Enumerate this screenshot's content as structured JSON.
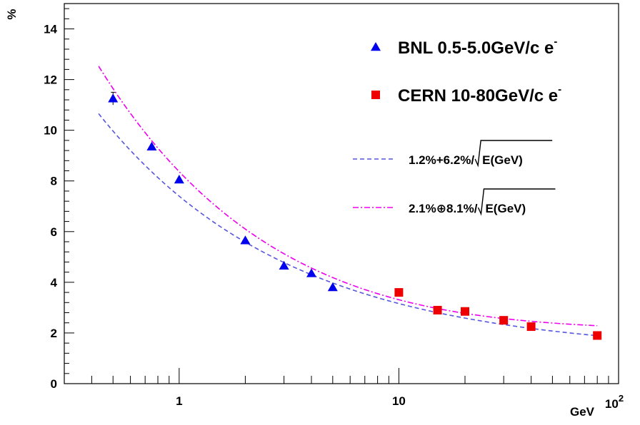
{
  "chart_data": {
    "type": "scatter",
    "title": "",
    "xlabel": "GeV",
    "ylabel": "%",
    "x_scale": "log",
    "xlim": [
      0.3,
      100
    ],
    "ylim": [
      0,
      15
    ],
    "x_ticks": [
      {
        "value": 1,
        "label": "1"
      },
      {
        "value": 10,
        "label": "10"
      },
      {
        "value": 100,
        "label": "10",
        "exp": "2"
      }
    ],
    "y_ticks": [
      {
        "value": 0,
        "label": "0"
      },
      {
        "value": 2,
        "label": "2"
      },
      {
        "value": 4,
        "label": "4"
      },
      {
        "value": 6,
        "label": "6"
      },
      {
        "value": 8,
        "label": "8"
      },
      {
        "value": 10,
        "label": "10"
      },
      {
        "value": 12,
        "label": "12"
      },
      {
        "value": 14,
        "label": "14"
      }
    ],
    "grid": false,
    "legend_position": "top-right",
    "series": [
      {
        "name": "BNL 0.5-5.0GeV/c e",
        "name_sup": "-",
        "marker": "triangle",
        "color": "#0000ee",
        "points": [
          {
            "x": 0.5,
            "y": 11.25,
            "err": 0.25
          },
          {
            "x": 0.75,
            "y": 9.35
          },
          {
            "x": 1.0,
            "y": 8.05
          },
          {
            "x": 2.0,
            "y": 5.65
          },
          {
            "x": 3.0,
            "y": 4.65
          },
          {
            "x": 4.0,
            "y": 4.35
          },
          {
            "x": 5.0,
            "y": 3.8
          }
        ]
      },
      {
        "name": "CERN 10-80GeV/c e",
        "name_sup": "-",
        "marker": "square",
        "color": "#ee0000",
        "points": [
          {
            "x": 10,
            "y": 3.6
          },
          {
            "x": 15,
            "y": 2.9
          },
          {
            "x": 20,
            "y": 2.85
          },
          {
            "x": 30,
            "y": 2.5
          },
          {
            "x": 40,
            "y": 2.25
          },
          {
            "x": 80,
            "y": 1.9
          }
        ]
      }
    ],
    "fits": [
      {
        "label_prefix": "1.2%+6.2%/",
        "label_radicand": "E(GeV)",
        "style": "dashed",
        "color": "#5555dd",
        "a": 1.2,
        "b": 6.2,
        "combine": "linear",
        "x_range": [
          0.43,
          80
        ]
      },
      {
        "label_prefix": "2.1%⊕8.1%/",
        "label_radicand": "E(GeV)",
        "style": "dashdot",
        "color": "#ee00ee",
        "a": 2.1,
        "b": 8.1,
        "combine": "quadrature",
        "x_range": [
          0.43,
          80
        ]
      }
    ]
  }
}
